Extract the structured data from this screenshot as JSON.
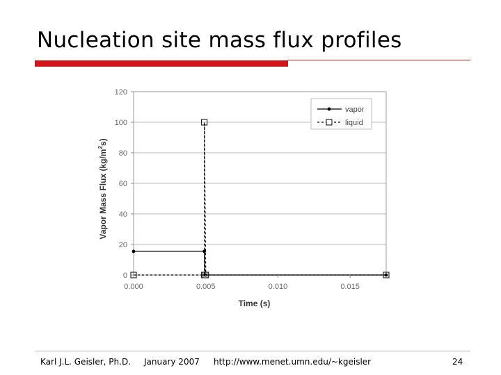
{
  "slide": {
    "title": "Nucleation site mass flux profiles",
    "footer": {
      "author": "Karl J.L. Geisler, Ph.D.",
      "date": "January 2007",
      "url": "http://www.menet.umn.edu/~kgeisler",
      "page": "24"
    }
  },
  "colors": {
    "accent_bar": "#d0161c",
    "gridline": "#b8b8b8",
    "series": "#000000",
    "tick_text": "#666666"
  },
  "chart_data": {
    "type": "line",
    "title": "",
    "xlabel": "Time (s)",
    "ylabel": "Vapor Mass Flux (kg/m^2s)",
    "xlim": [
      0.0,
      0.0175
    ],
    "ylim": [
      0,
      120
    ],
    "x_ticks": [
      "0.000",
      "0.005",
      "0.010",
      "0.015"
    ],
    "x_tick_values": [
      0.0,
      0.005,
      0.01,
      0.015
    ],
    "y_ticks": [
      "0",
      "20",
      "40",
      "60",
      "80",
      "100",
      "120"
    ],
    "y_tick_values": [
      0,
      20,
      40,
      60,
      80,
      100,
      120
    ],
    "grid": "horizontal",
    "legend_position": "top-right",
    "series": [
      {
        "name": "vapor",
        "style": "solid",
        "marker": "dot",
        "x": [
          0.0,
          0.0049,
          0.00495,
          0.0199
        ],
        "y": [
          15.5,
          15.5,
          0,
          0
        ]
      },
      {
        "name": "liquid",
        "style": "dashed",
        "marker": "square",
        "x": [
          0.0,
          0.0049,
          0.0049,
          0.005,
          0.0199
        ],
        "y": [
          0,
          0,
          100,
          0,
          0
        ]
      }
    ]
  }
}
